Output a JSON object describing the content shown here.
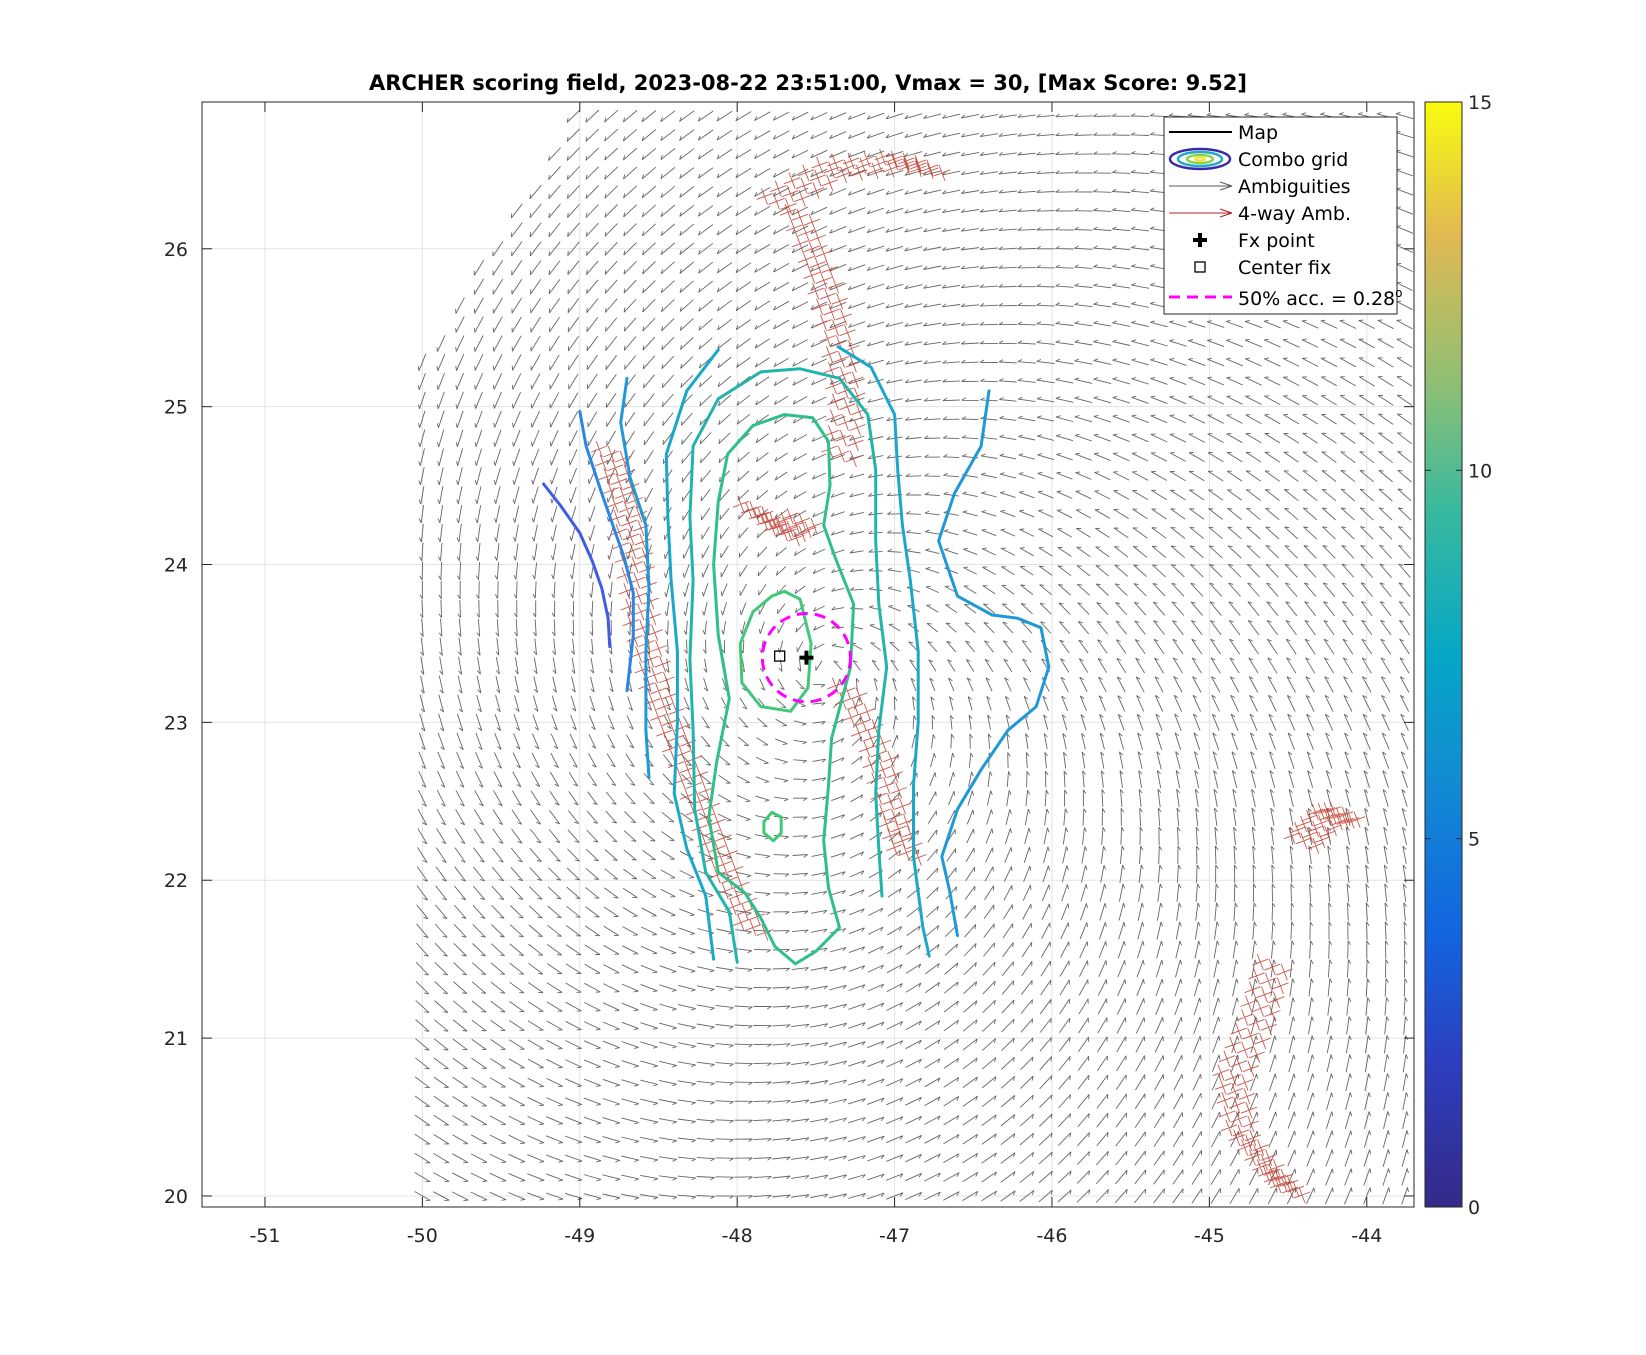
{
  "chart_data": {
    "type": "scatter",
    "title": "ARCHER scoring field, 2023-08-22 23:51:00, Vmax = 30, [Max Score: 9.52]",
    "xlabel": "",
    "ylabel": "",
    "xlim": [
      -51.4,
      -43.7
    ],
    "ylim": [
      19.93,
      26.93
    ],
    "xticks": [
      -51,
      -50,
      -49,
      -48,
      -47,
      -46,
      -45,
      -44
    ],
    "yticks": [
      20,
      21,
      22,
      23,
      24,
      25,
      26
    ],
    "grid": true,
    "legend_position": "top-right",
    "legend": [
      {
        "label": "Map",
        "kind": "line",
        "color": "#000000"
      },
      {
        "label": "Combo grid",
        "kind": "contour",
        "color": "#3b4cc0"
      },
      {
        "label": "Ambiguities",
        "kind": "arrow",
        "color": "#5a5a5a"
      },
      {
        "label": "4-way Amb.",
        "kind": "arrow",
        "color": "#b22222"
      },
      {
        "label": "Fx point",
        "kind": "plus",
        "color": "#000000"
      },
      {
        "label": "Center fix",
        "kind": "square",
        "color": "#000000"
      },
      {
        "label": "50% acc. = 0.28",
        "superscript": "o",
        "kind": "dashed",
        "color": "#ff00ff"
      }
    ],
    "fx_point": {
      "lon": -47.56,
      "lat": 23.41
    },
    "center_fix": {
      "lon": -47.73,
      "lat": 23.42
    },
    "accuracy_circle": {
      "lon": -47.56,
      "lat": 23.41,
      "radius_deg": 0.28
    },
    "colorbar": {
      "min": 0,
      "max": 15,
      "ticks": [
        0,
        5,
        10,
        15
      ],
      "colormap": "parula"
    },
    "max_score": 9.52,
    "contours": [
      {
        "level": 4.2,
        "color": "#3d5ce8",
        "path": [
          [
            -49.23,
            24.51
          ],
          [
            -49.12,
            24.37
          ],
          [
            -49.0,
            24.2
          ],
          [
            -48.92,
            24.02
          ],
          [
            -48.86,
            23.85
          ],
          [
            -48.82,
            23.66
          ],
          [
            -48.81,
            23.48
          ]
        ]
      },
      {
        "level": 5.0,
        "color": "#2b86e3",
        "path": [
          [
            -49.0,
            24.97
          ],
          [
            -48.96,
            24.75
          ],
          [
            -48.86,
            24.45
          ],
          [
            -48.72,
            24.05
          ],
          [
            -48.66,
            23.82
          ],
          [
            -48.66,
            23.55
          ],
          [
            -48.7,
            23.2
          ]
        ]
      },
      {
        "level": 5.6,
        "color": "#1f98d8",
        "path": [
          [
            -48.7,
            25.18
          ],
          [
            -48.74,
            24.9
          ],
          [
            -48.68,
            24.55
          ],
          [
            -48.58,
            24.25
          ],
          [
            -48.56,
            23.85
          ],
          [
            -48.58,
            23.45
          ],
          [
            -48.58,
            22.95
          ],
          [
            -48.56,
            22.65
          ]
        ]
      },
      {
        "level": 5.6,
        "color": "#1f98d8",
        "path": [
          [
            -46.4,
            25.1
          ],
          [
            -46.45,
            24.75
          ],
          [
            -46.62,
            24.45
          ],
          [
            -46.72,
            24.15
          ],
          [
            -46.6,
            23.8
          ],
          [
            -46.38,
            23.68
          ],
          [
            -46.22,
            23.66
          ],
          [
            -46.07,
            23.6
          ],
          [
            -46.02,
            23.35
          ],
          [
            -46.1,
            23.1
          ],
          [
            -46.28,
            22.95
          ],
          [
            -46.45,
            22.7
          ],
          [
            -46.6,
            22.45
          ],
          [
            -46.7,
            22.15
          ],
          [
            -46.65,
            21.93
          ],
          [
            -46.6,
            21.65
          ]
        ]
      },
      {
        "level": 6.4,
        "color": "#19a8c8",
        "path": [
          [
            -48.12,
            25.36
          ],
          [
            -48.32,
            25.1
          ],
          [
            -48.45,
            24.7
          ],
          [
            -48.44,
            24.3
          ],
          [
            -48.42,
            23.9
          ],
          [
            -48.38,
            23.45
          ],
          [
            -48.38,
            23.0
          ],
          [
            -48.4,
            22.55
          ],
          [
            -48.32,
            22.2
          ],
          [
            -48.2,
            21.9
          ],
          [
            -48.15,
            21.5
          ]
        ]
      },
      {
        "level": 6.4,
        "color": "#19a8c8",
        "path": [
          [
            -47.36,
            25.38
          ],
          [
            -47.15,
            25.25
          ],
          [
            -47.0,
            24.95
          ],
          [
            -46.98,
            24.6
          ],
          [
            -46.95,
            24.25
          ],
          [
            -46.9,
            23.9
          ],
          [
            -46.85,
            23.45
          ],
          [
            -46.85,
            23.0
          ],
          [
            -46.88,
            22.6
          ],
          [
            -46.88,
            22.15
          ],
          [
            -46.82,
            21.7
          ],
          [
            -46.78,
            21.52
          ]
        ]
      },
      {
        "level": 7.3,
        "color": "#20b5ab",
        "path": [
          [
            -48.0,
            21.48
          ],
          [
            -48.05,
            21.8
          ],
          [
            -48.2,
            22.05
          ],
          [
            -48.27,
            22.45
          ],
          [
            -48.28,
            22.95
          ],
          [
            -48.3,
            23.4
          ],
          [
            -48.28,
            23.9
          ],
          [
            -48.3,
            24.3
          ],
          [
            -48.28,
            24.75
          ],
          [
            -48.12,
            25.05
          ],
          [
            -47.85,
            25.22
          ],
          [
            -47.6,
            25.24
          ],
          [
            -47.35,
            25.18
          ],
          [
            -47.17,
            24.95
          ],
          [
            -47.12,
            24.6
          ],
          [
            -47.12,
            24.15
          ],
          [
            -47.1,
            23.75
          ],
          [
            -47.05,
            23.35
          ],
          [
            -47.1,
            22.95
          ],
          [
            -47.12,
            22.55
          ],
          [
            -47.1,
            22.2
          ],
          [
            -47.08,
            21.9
          ]
        ]
      },
      {
        "level": 8.1,
        "color": "#2fbf8a",
        "path": [
          [
            -47.63,
            21.47
          ],
          [
            -47.76,
            21.58
          ],
          [
            -47.85,
            21.76
          ],
          [
            -47.95,
            21.92
          ],
          [
            -48.12,
            22.05
          ],
          [
            -48.18,
            22.4
          ],
          [
            -48.13,
            22.75
          ],
          [
            -48.05,
            23.15
          ],
          [
            -48.12,
            23.55
          ],
          [
            -48.15,
            24.0
          ],
          [
            -48.12,
            24.4
          ],
          [
            -48.06,
            24.7
          ],
          [
            -47.9,
            24.88
          ],
          [
            -47.7,
            24.95
          ],
          [
            -47.52,
            24.93
          ],
          [
            -47.42,
            24.78
          ],
          [
            -47.41,
            24.5
          ],
          [
            -47.45,
            24.25
          ],
          [
            -47.38,
            24.05
          ],
          [
            -47.26,
            23.75
          ],
          [
            -47.28,
            23.35
          ],
          [
            -47.4,
            22.9
          ],
          [
            -47.42,
            22.6
          ],
          [
            -47.45,
            22.25
          ],
          [
            -47.42,
            21.95
          ],
          [
            -47.35,
            21.7
          ],
          [
            -47.5,
            21.55
          ],
          [
            -47.63,
            21.47
          ]
        ]
      },
      {
        "level": 8.8,
        "color": "#3fc877",
        "path": [
          [
            -47.78,
            23.8
          ],
          [
            -47.9,
            23.7
          ],
          [
            -47.98,
            23.5
          ],
          [
            -47.97,
            23.25
          ],
          [
            -47.85,
            23.1
          ],
          [
            -47.66,
            23.07
          ],
          [
            -47.55,
            23.22
          ],
          [
            -47.53,
            23.5
          ],
          [
            -47.6,
            23.78
          ],
          [
            -47.7,
            23.83
          ],
          [
            -47.78,
            23.8
          ]
        ]
      },
      {
        "level": 8.8,
        "color": "#3fc877",
        "path": [
          [
            -47.83,
            22.37
          ],
          [
            -47.78,
            22.43
          ],
          [
            -47.72,
            22.4
          ],
          [
            -47.72,
            22.3
          ],
          [
            -47.77,
            22.25
          ],
          [
            -47.83,
            22.3
          ],
          [
            -47.83,
            22.37
          ]
        ]
      }
    ],
    "four_way_ambiguity_regions": [
      {
        "path": [
          [
            -47.75,
            26.3
          ],
          [
            -47.4,
            26.5
          ],
          [
            -47.0,
            26.55
          ],
          [
            -46.7,
            26.5
          ]
        ]
      },
      {
        "path": [
          [
            -47.6,
            26.2
          ],
          [
            -47.45,
            25.8
          ],
          [
            -47.35,
            25.4
          ],
          [
            -47.3,
            25.0
          ],
          [
            -47.35,
            24.6
          ]
        ]
      },
      {
        "path": [
          [
            -48.8,
            24.7
          ],
          [
            -48.7,
            24.35
          ],
          [
            -48.65,
            24.0
          ],
          [
            -48.6,
            23.6
          ],
          [
            -48.5,
            23.2
          ],
          [
            -48.35,
            22.8
          ],
          [
            -48.2,
            22.4
          ],
          [
            -48.05,
            22.0
          ],
          [
            -47.85,
            21.6
          ]
        ]
      },
      {
        "path": [
          [
            -47.3,
            23.2
          ],
          [
            -47.1,
            22.8
          ],
          [
            -47.0,
            22.4
          ],
          [
            -46.9,
            22.1
          ]
        ]
      },
      {
        "path": [
          [
            -47.9,
            24.35
          ],
          [
            -47.7,
            24.2
          ],
          [
            -47.55,
            24.3
          ]
        ]
      },
      {
        "path": [
          [
            -44.6,
            21.45
          ],
          [
            -44.7,
            21.1
          ],
          [
            -44.85,
            20.75
          ],
          [
            -44.8,
            20.4
          ],
          [
            -44.6,
            20.15
          ],
          [
            -44.45,
            20.0
          ]
        ]
      },
      {
        "path": [
          [
            -44.4,
            22.25
          ],
          [
            -44.25,
            22.4
          ],
          [
            -44.1,
            22.42
          ]
        ]
      }
    ]
  }
}
